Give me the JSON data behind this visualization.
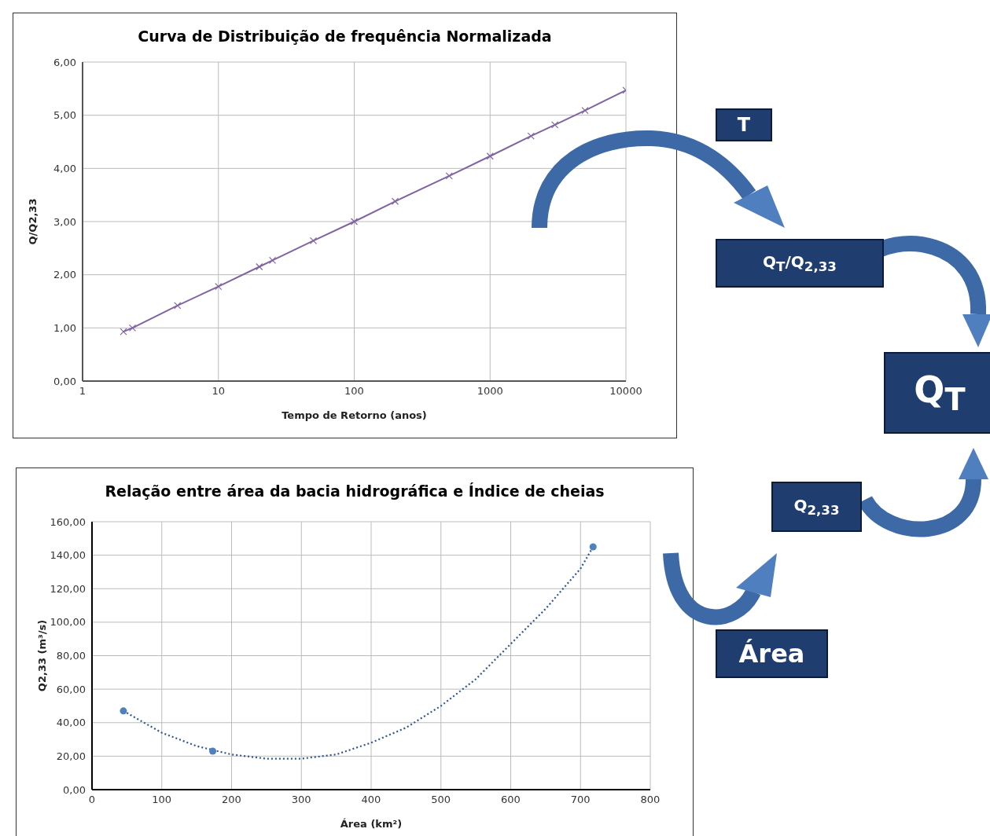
{
  "chart_data": [
    {
      "type": "line",
      "title": "Curva de Distribuição de frequência Normalizada",
      "xlabel": "Tempo de Retorno (anos)",
      "ylabel": "Q/Q2,33",
      "log": "x",
      "grid": true,
      "marker": "cross",
      "line_style": "solid",
      "x": [
        2,
        2.33,
        5,
        10,
        20,
        25,
        50,
        100,
        200,
        500,
        1000,
        2000,
        3000,
        5000,
        10000
      ],
      "series": [
        {
          "color": "#8064a2",
          "values": [
            0.93,
            1.0,
            1.42,
            1.78,
            2.15,
            2.27,
            2.64,
            3.0,
            3.38,
            3.86,
            4.23,
            4.61,
            4.82,
            5.09,
            5.47
          ]
        }
      ],
      "xlim": [
        1,
        10000
      ],
      "xticks": [
        1,
        10,
        100,
        1000,
        10000
      ],
      "ylim": [
        0,
        6
      ],
      "yticks": [
        {
          "value": 0,
          "label": "0,00"
        },
        {
          "value": 1,
          "label": "1,00"
        },
        {
          "value": 2,
          "label": "2,00"
        },
        {
          "value": 3,
          "label": "3,00"
        },
        {
          "value": 4,
          "label": "4,00"
        },
        {
          "value": 5,
          "label": "5,00"
        },
        {
          "value": 6,
          "label": "6,00"
        }
      ]
    },
    {
      "type": "scatter",
      "title": "Relação entre área da bacia hidrográfica e Índice de cheias",
      "xlabel": "Área (km²)",
      "ylabel": "Q2,33 (m³/s)",
      "grid": true,
      "marker": "circle",
      "series": [
        {
          "type": "scatter",
          "color": "#4f81bd",
          "x": [
            45,
            173,
            718
          ],
          "values": [
            47,
            23,
            145
          ]
        },
        {
          "type": "line",
          "color": "#2f5597",
          "line_style": "dotted",
          "marker": "none",
          "x": [
            45,
            100,
            150,
            200,
            250,
            300,
            350,
            400,
            450,
            500,
            550,
            600,
            650,
            700,
            718
          ],
          "values": [
            47,
            34,
            26,
            21,
            18.5,
            18.5,
            21,
            28,
            37,
            50,
            66,
            87,
            108,
            132,
            145
          ]
        }
      ],
      "xlim": [
        0,
        800
      ],
      "xticks": [
        0,
        100,
        200,
        300,
        400,
        500,
        600,
        700,
        800
      ],
      "ylim": [
        0,
        160
      ],
      "yticks": [
        {
          "value": 0,
          "label": "0,00"
        },
        {
          "value": 20,
          "label": "20,00"
        },
        {
          "value": 40,
          "label": "40,00"
        },
        {
          "value": 60,
          "label": "60,00"
        },
        {
          "value": 80,
          "label": "80,00"
        },
        {
          "value": 100,
          "label": "100,00"
        },
        {
          "value": 120,
          "label": "120,00"
        },
        {
          "value": 140,
          "label": "140,00"
        },
        {
          "value": 160,
          "label": "160,00"
        }
      ]
    },
    {
      "type": "other",
      "annotations": [
        "T",
        "Q$_{T}$/Q$_{2,33}$",
        "Q$_{T}$",
        "Q$_{2,33}$",
        "Área"
      ]
    }
  ]
}
